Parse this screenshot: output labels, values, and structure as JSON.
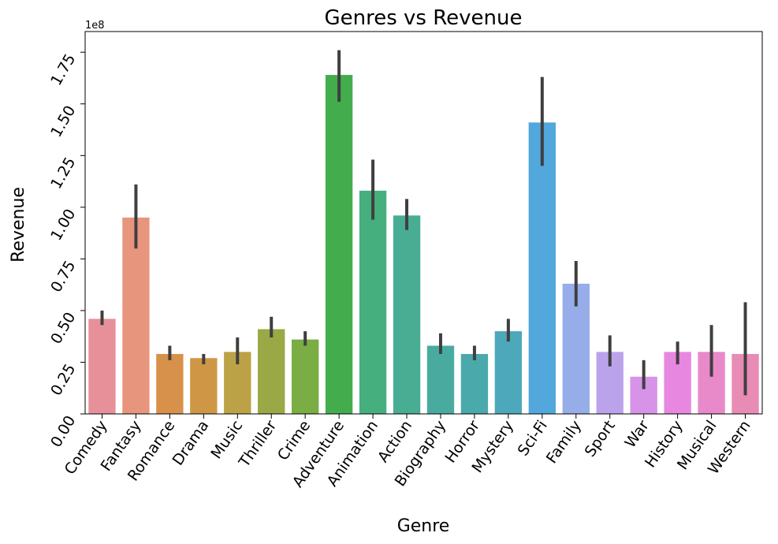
{
  "chart_data": {
    "type": "bar",
    "title": "Genres vs Revenue",
    "xlabel": "Genre",
    "ylabel": "Revenue",
    "y_offset_label": "1e8",
    "ylim": [
      0,
      1.85
    ],
    "y_ticks": [
      0.0,
      0.25,
      0.5,
      0.75,
      1.0,
      1.25,
      1.5,
      1.75
    ],
    "y_tick_labels": [
      "0.00",
      "0.25",
      "0.50",
      "0.75",
      "1.00",
      "1.25",
      "1.50",
      "1.75"
    ],
    "grid": false,
    "legend": "none",
    "error_bar_color": "#3f3f3f",
    "categories": [
      "Comedy",
      "Fantasy",
      "Romance",
      "Drama",
      "Music",
      "Thriller",
      "Crime",
      "Adventure",
      "Animation",
      "Action",
      "Biography",
      "Horror",
      "Mystery",
      "Sci-Fi",
      "Family",
      "Sport",
      "War",
      "History",
      "Musical",
      "Western"
    ],
    "values": [
      0.46,
      0.95,
      0.29,
      0.27,
      0.3,
      0.41,
      0.36,
      1.64,
      1.08,
      0.96,
      0.33,
      0.29,
      0.4,
      1.41,
      0.63,
      0.3,
      0.18,
      0.3,
      0.3,
      0.29
    ],
    "error_low": [
      0.43,
      0.8,
      0.26,
      0.24,
      0.24,
      0.37,
      0.33,
      1.51,
      0.94,
      0.89,
      0.29,
      0.26,
      0.35,
      1.2,
      0.52,
      0.23,
      0.12,
      0.24,
      0.18,
      0.09
    ],
    "error_high": [
      0.5,
      1.11,
      0.33,
      0.29,
      0.37,
      0.47,
      0.4,
      1.76,
      1.23,
      1.04,
      0.39,
      0.33,
      0.46,
      1.63,
      0.74,
      0.38,
      0.26,
      0.35,
      0.43,
      0.54
    ],
    "colors": [
      "#e8909a",
      "#e8957e",
      "#d8914a",
      "#cf9745",
      "#bba246",
      "#9aa845",
      "#7aad43",
      "#43ad4d",
      "#46af7e",
      "#48ad93",
      "#49aba0",
      "#4aa9aa",
      "#4ca8ba",
      "#52a7dc",
      "#96ade9",
      "#bba3ec",
      "#d693e8",
      "#e887e0",
      "#e889ca",
      "#e88bb5"
    ]
  }
}
